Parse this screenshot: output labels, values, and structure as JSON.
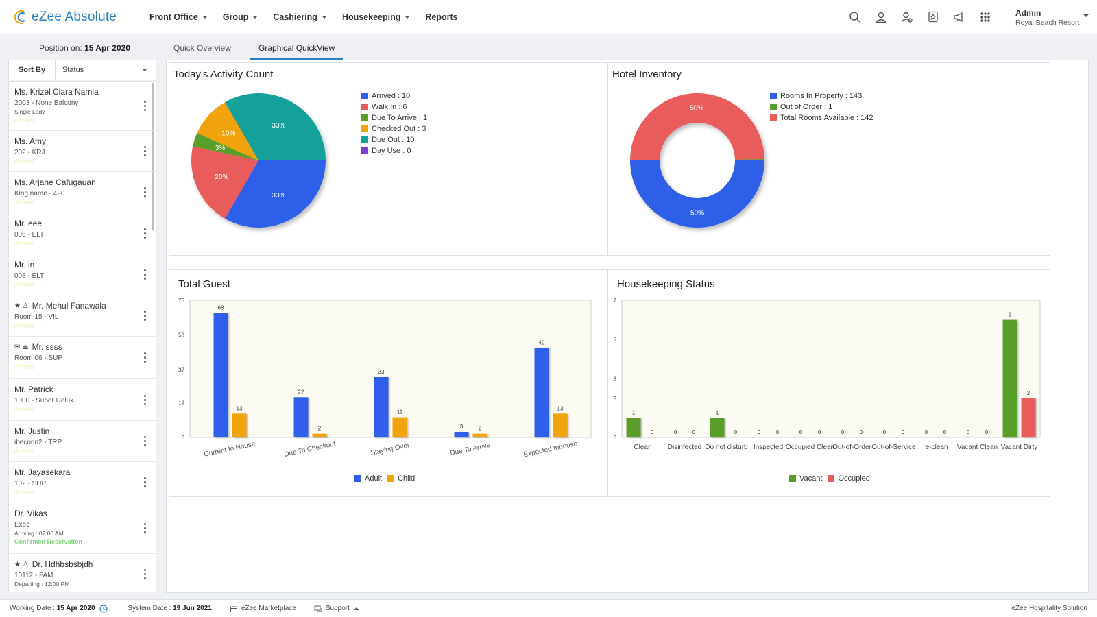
{
  "app": {
    "logo_text": "eZee Absolute"
  },
  "nav": [
    {
      "label": "Front Office",
      "dropdown": true
    },
    {
      "label": "Group",
      "dropdown": true
    },
    {
      "label": "Cashiering",
      "dropdown": true
    },
    {
      "label": "Housekeeping",
      "dropdown": true
    },
    {
      "label": "Reports",
      "dropdown": false
    }
  ],
  "toolbar_icons": [
    "search-icon",
    "user-icon",
    "user-settings-icon",
    "star-badge-icon",
    "megaphone-icon",
    "apps-grid-icon"
  ],
  "user": {
    "name": "Admin",
    "hotel": "Royal Beach Resort"
  },
  "position": {
    "label": "Position on:",
    "date": "15 Apr 2020"
  },
  "tabs": [
    {
      "label": "Quick Overview",
      "active": false
    },
    {
      "label": "Graphical QuickView",
      "active": true
    }
  ],
  "sort": {
    "label": "Sort By",
    "value": "Status"
  },
  "guests": [
    {
      "name": "Ms. Krizel Ciara Namia",
      "room": "2003 - None Balcony",
      "extra": "Single Lady",
      "status": "Arrived"
    },
    {
      "name": "Ms. Amy",
      "room": "202 - KRJ",
      "extra": "",
      "status": "Arrived"
    },
    {
      "name": "Ms. Arjane Cafugauan",
      "room": "King name - 420",
      "extra": "",
      "status": "Arrived"
    },
    {
      "name": "Mr. eee",
      "room": "006 - ELT",
      "extra": "",
      "status": "Arrived"
    },
    {
      "name": "Mr. in",
      "room": "008 - ELT",
      "extra": "",
      "status": "Arrived"
    },
    {
      "name": "Mr. Mehul Fanawala",
      "room": "Room 15 - VIL",
      "extra": "",
      "status": "Arrived",
      "icons": "★ ♙"
    },
    {
      "name": "Mr. ssss",
      "room": "Room 06 - SUP",
      "extra": "",
      "status": "Arrived",
      "icons": "✉ ⏏"
    },
    {
      "name": "Mr. Patrick",
      "room": "1000 - Super Delux",
      "extra": "",
      "status": "Arrived"
    },
    {
      "name": "Mr. Justin",
      "room": "ibeconn2 - TRP",
      "extra": "",
      "status": "Arrived"
    },
    {
      "name": "Mr. Jayasekara",
      "room": "102 - SUP",
      "extra": "",
      "status": "Arrived"
    },
    {
      "name": "Dr. Vikas",
      "room": "Exec",
      "extra": "Arriving : 02:00 AM",
      "status": "Confirmed Reservation",
      "status_color": "green"
    },
    {
      "name": "Dr. Hdhbsbsbjdh",
      "room": "10112 - FAM",
      "extra": "Departing : 12:00 PM",
      "status": "",
      "icons": "★ ♙"
    }
  ],
  "activity": {
    "title": "Today's Activity Count",
    "legend": [
      "Arrived : 10",
      "Walk In : 6",
      "Due To Arrive : 1",
      "Checked Out : 3",
      "Due Out : 10",
      "Day Use : 0"
    ],
    "colors": [
      "#2f5fe8",
      "#e85c5c",
      "#5a9e2a",
      "#f0a30a",
      "#16a09c",
      "#7b3fd6"
    ],
    "values": [
      10,
      6,
      1,
      3,
      10,
      0
    ],
    "slice_labels": [
      "33%",
      "20%",
      "3%",
      "10%",
      "33%",
      ""
    ]
  },
  "inventory": {
    "title": "Hotel Inventory",
    "legend": [
      "Rooms In Property : 143",
      "Out of Order : 1",
      "Total Rooms Available : 142"
    ],
    "colors": [
      "#2f5fe8",
      "#5a9e2a",
      "#e85c5c"
    ],
    "values": [
      143,
      1,
      142
    ],
    "slice_labels": [
      "50%",
      "",
      "50%"
    ]
  },
  "guests_chart": {
    "title": "Total Guest",
    "legend": [
      "Adult",
      "Child"
    ],
    "colors": [
      "#2f5fe8",
      "#f0a30a"
    ]
  },
  "housekeeping": {
    "title": "Housekeeping Status",
    "legend": [
      "Vacant",
      "Occupied"
    ],
    "colors": [
      "#5a9e2a",
      "#e85c5c"
    ]
  },
  "chart_data": [
    {
      "type": "pie",
      "title": "Today's Activity Count",
      "categories": [
        "Arrived",
        "Walk In",
        "Due To Arrive",
        "Checked Out",
        "Due Out",
        "Day Use"
      ],
      "values": [
        10,
        6,
        1,
        3,
        10,
        0
      ]
    },
    {
      "type": "pie",
      "title": "Hotel Inventory",
      "categories": [
        "Rooms In Property",
        "Out of Order",
        "Total Rooms Available"
      ],
      "values": [
        143,
        1,
        142
      ],
      "donut": true
    },
    {
      "type": "bar",
      "title": "Total Guest",
      "categories": [
        "Current In House",
        "Due To Checkout",
        "Staying Over",
        "Due To Arrive",
        "Expected Inhouse"
      ],
      "series": [
        {
          "name": "Adult",
          "values": [
            68,
            22,
            33,
            3,
            49
          ]
        },
        {
          "name": "Child",
          "values": [
            13,
            2,
            11,
            2,
            13
          ]
        }
      ],
      "yticks": [
        0,
        19,
        37,
        56,
        75
      ],
      "ylim": [
        0,
        75
      ]
    },
    {
      "type": "bar",
      "title": "Housekeeping Status",
      "categories": [
        "Clean",
        "Disinfected",
        "Do not disturb",
        "Inspected",
        "Occupied Clean",
        "Out-of-Order",
        "Out-of-Service",
        "re-clean",
        "Vacant Clean",
        "Vacant Dirty"
      ],
      "series": [
        {
          "name": "Vacant",
          "values": [
            1,
            0,
            1,
            0,
            0,
            0,
            0,
            0,
            0,
            6
          ]
        },
        {
          "name": "Occupied",
          "values": [
            0,
            0,
            0,
            0,
            0,
            0,
            0,
            0,
            0,
            2
          ]
        }
      ],
      "yticks": [
        0,
        2,
        3,
        5,
        7
      ],
      "ylim": [
        0,
        7
      ]
    }
  ],
  "footer": {
    "working_label": "Working Date :",
    "working_date": "15 Apr 2020",
    "system_label": "System Date :",
    "system_date": "19 Jun 2021",
    "marketplace": "eZee Marketplace",
    "support": "Support",
    "brand": "eZee Hospitality Solution"
  }
}
